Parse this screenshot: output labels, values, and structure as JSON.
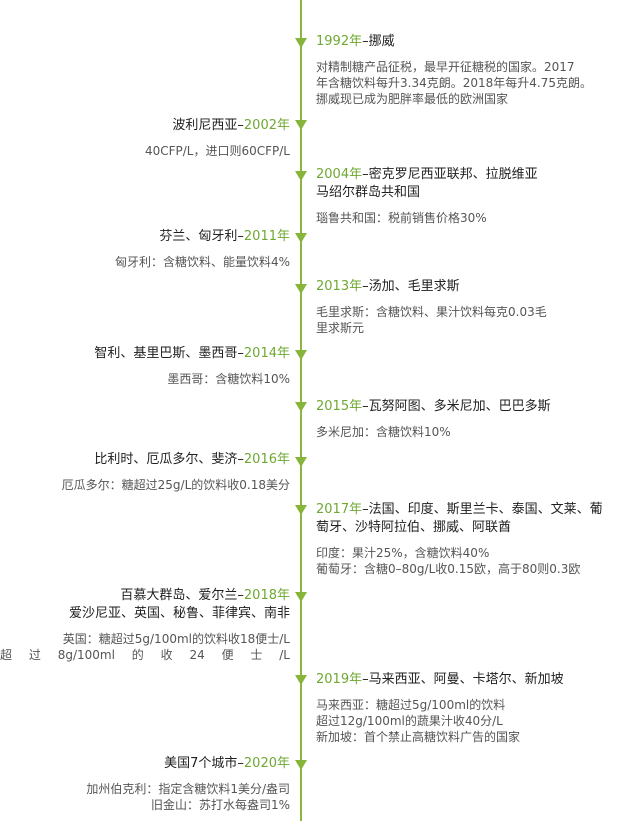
{
  "events": {
    "norway": {
      "year": "1992年",
      "title_rest": "–挪威",
      "lines": [
        "对精制糖产品征税，最早开征糖税的国家。2017",
        "年含糖饮料每升3.34克朗。2018年每升4.75克朗。",
        "挪威现已成为肥胖率最低的欧洲国家"
      ]
    },
    "polynesia": {
      "title_pre": "波利尼西亚–",
      "year": "2002年",
      "lines": [
        "40CFP/L，进口则60CFP/L"
      ]
    },
    "micronesia": {
      "year": "2004年",
      "title_line1_rest": "–密克罗尼西亚联邦、拉脱维亚",
      "title_line2": "马绍尔群岛共和国",
      "lines": [
        "瑙鲁共和国：税前销售价格30%"
      ]
    },
    "finland": {
      "title_pre": "芬兰、匈牙利–",
      "year": "2011年",
      "lines": [
        "匈牙利：含糖饮料、能量饮料4%"
      ]
    },
    "tonga": {
      "year": "2013年",
      "title_rest": "–汤加、毛里求斯",
      "lines": [
        "毛里求斯：含糖饮料、果汁饮料每克0.03毛",
        "里求斯元"
      ]
    },
    "chile": {
      "title_pre": "智利、基里巴斯、墨西哥–",
      "year": "2014年",
      "lines": [
        "墨西哥：含糖饮料10%"
      ]
    },
    "vanuatu": {
      "year": "2015年",
      "title_rest": "–瓦努阿图、多米尼加、巴巴多斯",
      "lines": [
        "多米尼加：含糖饮料10%"
      ]
    },
    "belgium": {
      "title_pre": "比利时、厄瓜多尔、斐济–",
      "year": "2016年",
      "lines": [
        "厄瓜多尔：糖超过25g/L的饮料收0.18美分"
      ]
    },
    "france": {
      "year": "2017年",
      "title_line1_rest": "–法国、印度、斯里兰卡、泰国、文莱、葡",
      "title_line2": "萄牙、沙特阿拉伯、挪威、阿联酋",
      "lines": [
        "印度：果汁25%，含糖饮料40%",
        "葡萄牙：含糖0–80g/L收0.15欧，高于80则0.3欧"
      ]
    },
    "bermuda": {
      "title_pre": "百慕大群岛、爱尔兰–",
      "year": "2018年",
      "title_line2": "爱沙尼亚、英国、秘鲁、菲律宾、南非",
      "lines": [
        "英国：糖超过5g/100ml的饮料收18便士/L",
        "超过8g/100ml的收24便士/L"
      ]
    },
    "malaysia": {
      "year": "2019年",
      "title_rest": "–马来西亚、阿曼、卡塔尔、新加坡",
      "lines": [
        "马来西亚：糖超过5g/100ml的饮料",
        "超过12g/100ml的蔬果汁收40分/L",
        "新加坡：首个禁止高糖饮料广告的国家"
      ]
    },
    "usa": {
      "title_pre": "美国7个城市–",
      "year": "2020年",
      "lines": [
        "加州伯克利：指定含糖饮料1美分/盎司",
        "旧金山：苏打水每盎司1%"
      ]
    }
  },
  "colors": {
    "accent": "#6fa832",
    "line": "#8ab73f",
    "marker": "#86b53a",
    "title": "#1f1f1f",
    "body": "#555555"
  }
}
